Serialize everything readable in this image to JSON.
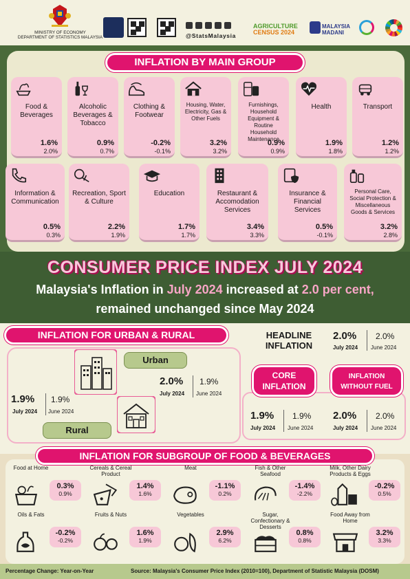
{
  "header": {
    "ministry_line1": "MINISTRY OF ECONOMY",
    "ministry_line2": "DEPARTMENT OF STATISTICS MALAYSIA",
    "social_handle": "@StatsMalaysia",
    "agri_census_line1": "AGRICULTURE",
    "agri_census_line2": "CENSUS 2024",
    "madani_line1": "MALAYSIA",
    "madani_line2": "MADANI"
  },
  "main_group": {
    "title": "INFLATION BY MAIN GROUP",
    "items": [
      {
        "label": "Food & Beverages",
        "value": "1.6%",
        "prev": "2.0%",
        "icon": "food-icon"
      },
      {
        "label": "Alcoholic Beverages & Tobacco",
        "value": "0.9%",
        "prev": "0.7%",
        "icon": "bottle-icon"
      },
      {
        "label": "Clothing & Footwear",
        "value": "-0.2%",
        "prev": "-0.1%",
        "icon": "shoe-icon"
      },
      {
        "label": "Housing, Water, Electricity, Gas & Other Fuels",
        "value": "3.2%",
        "prev": "3.2%",
        "icon": "house-icon"
      },
      {
        "label": "Furnishings, Household Equipment & Routine Household Maintenance",
        "value": "0.9%",
        "prev": "0.9%",
        "icon": "appliance-icon"
      },
      {
        "label": "Health",
        "value": "1.9%",
        "prev": "1.8%",
        "icon": "heart-icon"
      },
      {
        "label": "Transport",
        "value": "1.2%",
        "prev": "1.2%",
        "icon": "vehicle-icon"
      },
      {
        "label": "Information & Communication",
        "value": "0.5%",
        "prev": "0.3%",
        "icon": "phone-icon"
      },
      {
        "label": "Recreation, Sport & Culture",
        "value": "2.2%",
        "prev": "1.9%",
        "icon": "recreation-icon"
      },
      {
        "label": "Education",
        "value": "1.7%",
        "prev": "1.7%",
        "icon": "graduation-cap-icon"
      },
      {
        "label": "Restaurant & Accomodation Services",
        "value": "3.4%",
        "prev": "3.3%",
        "icon": "building-icon"
      },
      {
        "label": "Insurance & Financial Services",
        "value": "0.5%",
        "prev": "-0.1%",
        "icon": "insurance-icon"
      },
      {
        "label": "Personal Care, Social Protection & Miscellaneous Goods & Services",
        "value": "3.2%",
        "prev": "2.8%",
        "icon": "personal-care-icon"
      }
    ]
  },
  "cpi": {
    "title": "CONSUMER PRICE INDEX JULY 2024",
    "line1_a": "Malaysia's Inflation in ",
    "line1_b": "July 2024",
    "line1_c": " increased at ",
    "line1_d": "2.0 per cent,",
    "line2": "remained unchanged since May 2024"
  },
  "urban_rural": {
    "title": "INFLATION FOR URBAN & RURAL",
    "urban_label": "Urban",
    "urban_value": "2.0%",
    "urban_value_period": "July 2024",
    "urban_prev": "1.9%",
    "urban_prev_period": "June 2024",
    "rural_label": "Rural",
    "rural_value": "1.9%",
    "rural_value_period": "July 2024",
    "rural_prev": "1.9%",
    "rural_prev_period": "June 2024"
  },
  "headline": {
    "label_line1": "HEADLINE",
    "label_line2": "INFLATION",
    "value": "2.0%",
    "value_period": "July 2024",
    "prev": "2.0%",
    "prev_period": "June 2024"
  },
  "core": {
    "label_line1": "CORE",
    "label_line2": "INFLATION",
    "value": "1.9%",
    "value_period": "July 2024",
    "prev": "1.9%",
    "prev_period": "June 2024"
  },
  "without_fuel": {
    "label_line1": "INFLATION",
    "label_line2": "WITHOUT FUEL",
    "value": "2.0%",
    "value_period": "July 2024",
    "prev": "2.0%",
    "prev_period": "June 2024"
  },
  "food_subgroup": {
    "title": "INFLATION FOR SUBGROUP OF FOOD & BEVERAGES",
    "items": [
      {
        "label": "Food at Home",
        "value": "0.3%",
        "prev": "0.9%",
        "icon": "pot-icon"
      },
      {
        "label": "Cereals & Cereal Product",
        "value": "1.4%",
        "prev": "1.6%",
        "icon": "cereal-icon"
      },
      {
        "label": "Meat",
        "value": "-1.1%",
        "prev": "0.2%",
        "icon": "meat-icon"
      },
      {
        "label": "Fish & Other Seafood",
        "value": "-1.4%",
        "prev": "-2.2%",
        "icon": "shrimp-icon"
      },
      {
        "label": "Milk, Other Dairy Products & Eggs",
        "value": "-0.2%",
        "prev": "0.5%",
        "icon": "dairy-icon"
      },
      {
        "label": "Oils & Fats",
        "value": "-0.2%",
        "prev": "-0.2%",
        "icon": "oil-bottle-icon"
      },
      {
        "label": "Fruits & Nuts",
        "value": "1.6%",
        "prev": "1.9%",
        "icon": "fruit-icon"
      },
      {
        "label": "Vegetables",
        "value": "2.9%",
        "prev": "6.2%",
        "icon": "vegetable-icon"
      },
      {
        "label": "Sugar, Confectionary & Desserts",
        "value": "0.8%",
        "prev": "0.8%",
        "icon": "cake-icon"
      },
      {
        "label": "Food Away from Home",
        "value": "3.2%",
        "prev": "3.3%",
        "icon": "shop-icon"
      }
    ]
  },
  "footer": {
    "left": "Percentage Change: Year-on-Year",
    "right": "Source: Malaysia's Consumer Price Index (2010=100), Department of Statistic Malaysia (DOSM)"
  },
  "colors": {
    "magenta": "#e0146e",
    "pink_tile": "#f7c8d7",
    "dark_green": "#3e5d33",
    "olive_green": "#b7c98d",
    "cream": "#f3f1e0"
  }
}
